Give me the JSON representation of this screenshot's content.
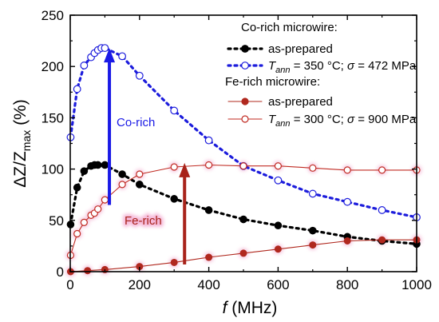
{
  "chart_data": {
    "type": "line",
    "xlabel": "f (MHz)",
    "ylabel": "ΔZ/Zmax (%)",
    "xlim": [
      0,
      1000
    ],
    "ylim": [
      0,
      250
    ],
    "xticks": [
      0,
      200,
      400,
      600,
      800,
      1000
    ],
    "yticks": [
      0,
      50,
      100,
      150,
      200,
      250
    ],
    "grid": false,
    "legend_groups": [
      {
        "title": "Co-rich microwire:",
        "series_indices": [
          0,
          1
        ]
      },
      {
        "title": "Fe-rich microwire:",
        "series_indices": [
          2,
          3
        ]
      }
    ],
    "series": [
      {
        "name": "as-prepared",
        "color": "#000000",
        "marker": "filled-circle",
        "line": "dotted",
        "x": [
          1,
          20,
          40,
          60,
          70,
          80,
          100,
          150,
          200,
          300,
          400,
          500,
          600,
          700,
          800,
          900,
          1000
        ],
        "y": [
          46,
          82,
          98,
          103,
          104,
          104,
          104,
          95,
          85,
          71,
          60,
          51,
          45,
          40,
          34,
          30,
          27
        ]
      },
      {
        "name": "T_ann = 350 °C; σ = 472 MPa",
        "color": "#1c1cdc",
        "marker": "open-circle",
        "line": "dotted",
        "x": [
          1,
          20,
          40,
          60,
          70,
          80,
          90,
          100,
          150,
          200,
          300,
          400,
          500,
          600,
          700,
          800,
          900,
          1000
        ],
        "y": [
          131,
          178,
          201,
          209,
          213,
          216,
          218,
          218,
          210,
          191,
          157,
          128,
          103,
          89,
          76,
          68,
          60,
          53
        ]
      },
      {
        "name": "as-prepared",
        "color": "#b0281e",
        "marker": "filled-circle",
        "line": "solid",
        "x": [
          1,
          50,
          100,
          200,
          300,
          400,
          500,
          600,
          700,
          800,
          900,
          1000
        ],
        "y": [
          0,
          1,
          2,
          5,
          9,
          14,
          18,
          22,
          26,
          30,
          31,
          31
        ]
      },
      {
        "name": "T_ann = 300 °C; σ = 900 MPa",
        "color": "#c02a22",
        "marker": "open-circle",
        "line": "solid",
        "x": [
          1,
          20,
          40,
          60,
          70,
          80,
          100,
          150,
          200,
          300,
          400,
          500,
          600,
          700,
          800,
          900,
          1000
        ],
        "y": [
          16,
          37,
          48,
          55,
          57,
          61,
          70,
          85,
          95,
          102,
          104,
          103,
          103,
          101,
          99,
          99,
          99
        ]
      }
    ],
    "annotations": [
      {
        "text": "Co-rich",
        "arrow_from": [
          113,
          65
        ],
        "arrow_to": [
          113,
          218
        ],
        "color": "#1a1ae6"
      },
      {
        "text": "Fe-rich",
        "arrow_from": [
          330,
          7
        ],
        "arrow_to": [
          330,
          106
        ],
        "color": "#a8231a"
      }
    ]
  }
}
